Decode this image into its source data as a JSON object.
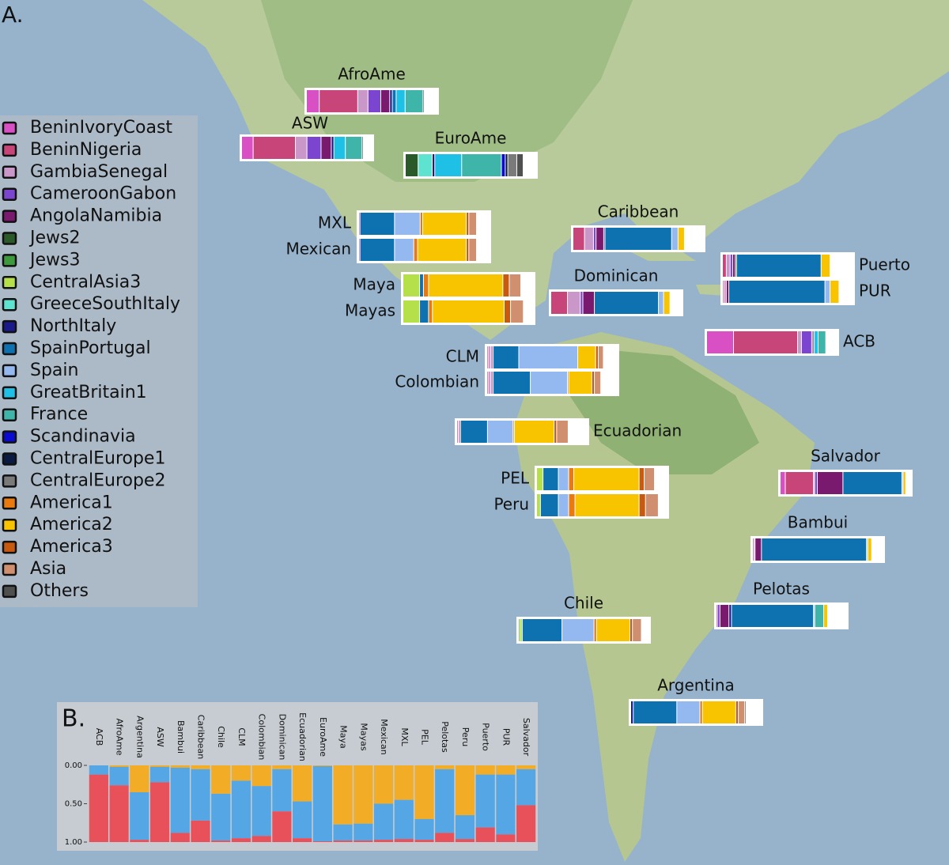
{
  "panel_a": {
    "label": "A.",
    "legend": [
      {
        "name": "BeninIvoryCoast",
        "color": "#d94fc4"
      },
      {
        "name": "BeninNigeria",
        "color": "#c8457a"
      },
      {
        "name": "GambiaSenegal",
        "color": "#c997c8"
      },
      {
        "name": "CameroonGabon",
        "color": "#7b45d0"
      },
      {
        "name": "AngolaNamibia",
        "color": "#7a1a6e"
      },
      {
        "name": "Jews2",
        "color": "#2a5a2a"
      },
      {
        "name": "Jews3",
        "color": "#3c9a3c"
      },
      {
        "name": "CentralAsia3",
        "color": "#b5e04a"
      },
      {
        "name": "GreeceSouthItaly",
        "color": "#5ee3d0"
      },
      {
        "name": "NorthItaly",
        "color": "#1a1a8a"
      },
      {
        "name": "SpainPortugal",
        "color": "#0e72b0"
      },
      {
        "name": "Spain",
        "color": "#94b8f0"
      },
      {
        "name": "GreatBritain1",
        "color": "#1ec0e6"
      },
      {
        "name": "France",
        "color": "#3fb4a8"
      },
      {
        "name": "Scandinavia",
        "color": "#0a0ad0"
      },
      {
        "name": "CentralEurope1",
        "color": "#0a1a40"
      },
      {
        "name": "CentralEurope2",
        "color": "#7a7a7a"
      },
      {
        "name": "America1",
        "color": "#e87a10"
      },
      {
        "name": "America2",
        "color": "#f8c400"
      },
      {
        "name": "America3",
        "color": "#c85a10"
      },
      {
        "name": "Asia",
        "color": "#d09070"
      },
      {
        "name": "Others",
        "color": "#505050"
      }
    ],
    "populations": [
      {
        "name": "AfroAme",
        "values": [
          10,
          30,
          8,
          10,
          7,
          0,
          0,
          0,
          0,
          2,
          3,
          0,
          7,
          14,
          0,
          0,
          0,
          0,
          0,
          0,
          0,
          1
        ]
      },
      {
        "name": "ASW",
        "values": [
          9,
          33,
          9,
          11,
          8,
          0,
          0,
          0,
          0,
          2,
          0,
          0,
          9,
          13,
          0,
          0,
          0,
          0,
          0,
          0,
          0,
          1
        ]
      },
      {
        "name": "EuroAme",
        "values": [
          0,
          0,
          0,
          0,
          0,
          10,
          0,
          0,
          11,
          2,
          0,
          0,
          21,
          31,
          3,
          2,
          7,
          0,
          0,
          0,
          0,
          5
        ]
      },
      {
        "name": "MXL",
        "values": [
          1,
          0,
          0,
          0,
          0,
          0,
          0,
          0,
          0,
          0,
          27,
          20,
          0,
          0,
          0,
          0,
          0,
          2,
          34,
          2,
          6,
          0
        ]
      },
      {
        "name": "Mexican",
        "values": [
          1,
          0,
          0,
          0,
          0,
          0,
          0,
          0,
          0,
          0,
          27,
          15,
          0,
          0,
          0,
          0,
          0,
          3,
          38,
          2,
          6,
          0
        ]
      },
      {
        "name": "Maya",
        "values": [
          0,
          0,
          0,
          0,
          0,
          0,
          0,
          13,
          0,
          0,
          3,
          0,
          0,
          0,
          0,
          0,
          0,
          4,
          58,
          5,
          9,
          0
        ]
      },
      {
        "name": "Mayas",
        "values": [
          0,
          0,
          0,
          0,
          0,
          0,
          0,
          13,
          0,
          0,
          7,
          0,
          0,
          0,
          0,
          0,
          0,
          3,
          56,
          5,
          10,
          0
        ]
      },
      {
        "name": "Caribbean",
        "values": [
          0,
          9,
          7,
          2,
          6,
          0,
          0,
          0,
          0,
          1,
          52,
          5,
          0,
          0,
          0,
          0,
          0,
          0,
          5,
          0,
          0,
          0
        ]
      },
      {
        "name": "Dominican",
        "values": [
          0,
          13,
          10,
          2,
          9,
          0,
          0,
          0,
          0,
          0,
          50,
          4,
          0,
          0,
          0,
          0,
          0,
          0,
          5,
          0,
          0,
          0
        ]
      },
      {
        "name": "Puerto",
        "values": [
          0,
          3,
          3,
          2,
          2,
          1,
          0,
          0,
          0,
          0,
          66,
          0,
          0,
          0,
          0,
          0,
          0,
          0,
          7,
          0,
          0,
          0
        ]
      },
      {
        "name": "PUR",
        "values": [
          0,
          1,
          2,
          0,
          2,
          0,
          0,
          0,
          0,
          0,
          75,
          4,
          0,
          0,
          0,
          0,
          0,
          0,
          7,
          0,
          0,
          0
        ]
      },
      {
        "name": "ACB",
        "values": [
          21,
          50,
          3,
          8,
          1,
          0,
          0,
          0,
          0,
          1,
          0,
          0,
          3,
          6,
          0,
          0,
          0,
          0,
          0,
          0,
          0,
          0
        ]
      },
      {
        "name": "CLM",
        "values": [
          0,
          1,
          2,
          1,
          1,
          0,
          0,
          0,
          0,
          0,
          20,
          46,
          0,
          0,
          0,
          0,
          0,
          0,
          14,
          2,
          4,
          0
        ]
      },
      {
        "name": "Colombian",
        "values": [
          0,
          1,
          2,
          1,
          1,
          0,
          0,
          0,
          0,
          0,
          29,
          29,
          0,
          0,
          0,
          0,
          0,
          1,
          18,
          2,
          5,
          0
        ]
      },
      {
        "name": "Ecuadorian",
        "values": [
          0,
          1,
          1,
          0,
          1,
          0,
          0,
          0,
          0,
          0,
          21,
          20,
          0,
          0,
          0,
          0,
          0,
          1,
          31,
          2,
          9,
          0
        ]
      },
      {
        "name": "PEL",
        "values": [
          0,
          0,
          0,
          0,
          0,
          0,
          0,
          5,
          0,
          0,
          12,
          8,
          0,
          0,
          0,
          0,
          0,
          4,
          51,
          4,
          8,
          0
        ]
      },
      {
        "name": "Peru",
        "values": [
          0,
          0,
          0,
          0,
          0,
          0,
          0,
          3,
          0,
          0,
          14,
          8,
          0,
          0,
          0,
          0,
          0,
          5,
          50,
          5,
          10,
          0
        ]
      },
      {
        "name": "Salvador",
        "values": [
          4,
          22,
          1,
          2,
          20,
          0,
          0,
          0,
          0,
          0,
          46,
          1,
          0,
          0,
          0,
          0,
          0,
          0,
          2,
          0,
          0,
          0
        ]
      },
      {
        "name": "Bambui",
        "values": [
          0,
          1,
          1,
          0,
          5,
          0,
          0,
          0,
          0,
          0,
          82,
          1,
          0,
          0,
          0,
          0,
          0,
          0,
          3,
          0,
          0,
          0
        ]
      },
      {
        "name": "Chile",
        "values": [
          0,
          0,
          0,
          0,
          0,
          0,
          1,
          2,
          0,
          0,
          31,
          25,
          0,
          0,
          0,
          0,
          0,
          2,
          26,
          2,
          7,
          0
        ]
      },
      {
        "name": "Pelotas",
        "values": [
          0,
          1,
          0,
          2,
          7,
          0,
          0,
          0,
          0,
          2,
          64,
          1,
          0,
          7,
          0,
          0,
          0,
          0,
          3,
          0,
          0,
          0
        ]
      },
      {
        "name": "Argentina",
        "values": [
          0,
          0,
          0,
          0,
          0,
          0,
          0,
          0,
          0,
          2,
          34,
          18,
          0,
          0,
          0,
          0,
          0,
          2,
          26,
          2,
          5,
          1
        ]
      }
    ]
  },
  "chart_data": {
    "type": "stacked-bar",
    "title": "B.",
    "categories": [
      "ACB",
      "AfroAme",
      "Argentina",
      "ASW",
      "Bambui",
      "Caribbean",
      "Chile",
      "CLM",
      "Colombian",
      "Dominican",
      "Ecuadorian",
      "EuroAme",
      "Maya",
      "Mayas",
      "Mexican",
      "MXL",
      "PEL",
      "Pelotas",
      "Peru",
      "Puerto",
      "PUR",
      "Salvador"
    ],
    "series": [
      {
        "color": "#f2ac26",
        "values": [
          0.0,
          0.02,
          0.35,
          0.02,
          0.03,
          0.05,
          0.37,
          0.2,
          0.27,
          0.05,
          0.47,
          0.01,
          0.77,
          0.76,
          0.5,
          0.45,
          0.7,
          0.05,
          0.65,
          0.12,
          0.12,
          0.05
        ]
      },
      {
        "color": "#54a6e4",
        "values": [
          0.12,
          0.24,
          0.62,
          0.2,
          0.85,
          0.67,
          0.61,
          0.75,
          0.65,
          0.55,
          0.48,
          0.98,
          0.21,
          0.22,
          0.47,
          0.51,
          0.27,
          0.83,
          0.31,
          0.69,
          0.78,
          0.47
        ]
      },
      {
        "color": "#e8505a",
        "values": [
          0.88,
          0.74,
          0.03,
          0.78,
          0.12,
          0.28,
          0.02,
          0.05,
          0.08,
          0.4,
          0.05,
          0.01,
          0.02,
          0.02,
          0.03,
          0.04,
          0.03,
          0.12,
          0.04,
          0.19,
          0.1,
          0.48
        ]
      }
    ],
    "ylim": [
      0,
      1
    ],
    "y_inverted": true,
    "yticks": [
      {
        "value": 0,
        "label": "0.00"
      },
      {
        "value": 0.5,
        "label": "0.50"
      },
      {
        "value": 1,
        "label": "1.00"
      }
    ]
  }
}
